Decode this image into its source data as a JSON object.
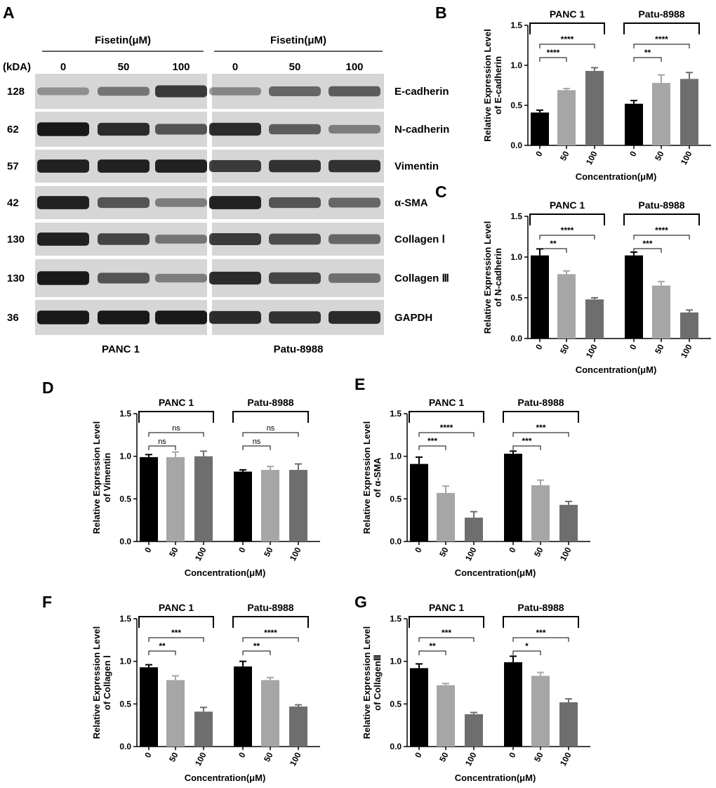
{
  "western_blot": {
    "panel_letter": "A",
    "treatment_labels": [
      "Fisetin(μM)",
      "Fisetin(μM)"
    ],
    "kda_label": "(kDA)",
    "concentrations": [
      "0",
      "50",
      "100",
      "0",
      "50",
      "100"
    ],
    "cell_lines": [
      "PANC 1",
      "Patu-8988"
    ],
    "rows": [
      {
        "protein": "E-cadherin",
        "kda": "128",
        "intensity": [
          0.25,
          0.4,
          0.75,
          0.3,
          0.5,
          0.55
        ]
      },
      {
        "protein": "N-cadherin",
        "kda": "62",
        "intensity": [
          0.95,
          0.85,
          0.6,
          0.85,
          0.55,
          0.35
        ]
      },
      {
        "protein": "Vimentin",
        "kda": "57",
        "intensity": [
          0.9,
          0.9,
          0.9,
          0.75,
          0.8,
          0.8
        ]
      },
      {
        "protein": "α-SMA",
        "kda": "42",
        "intensity": [
          0.9,
          0.6,
          0.35,
          0.9,
          0.6,
          0.5
        ]
      },
      {
        "protein": "Collagen Ⅰ",
        "kda": "130",
        "intensity": [
          0.9,
          0.7,
          0.4,
          0.75,
          0.65,
          0.5
        ]
      },
      {
        "protein": "Collagen Ⅲ",
        "kda": "130",
        "intensity": [
          0.95,
          0.6,
          0.35,
          0.85,
          0.7,
          0.45
        ]
      },
      {
        "protein": "GAPDH",
        "kda": "36",
        "intensity": [
          0.95,
          0.95,
          0.95,
          0.85,
          0.8,
          0.85
        ]
      }
    ]
  },
  "chart_data": [
    {
      "panel": "B",
      "type": "bar",
      "ylabel_line1": "Relative Expression  Level",
      "ylabel_line2": "of E-cadherin",
      "xlabel": "Concentration(μM)",
      "groups": [
        "PANC 1",
        "Patu-8988"
      ],
      "categories": [
        "0",
        "50",
        "100",
        "0",
        "50",
        "100"
      ],
      "values": [
        0.41,
        0.69,
        0.93,
        0.52,
        0.78,
        0.83
      ],
      "errors": [
        0.03,
        0.02,
        0.04,
        0.04,
        0.1,
        0.08
      ],
      "ylim": [
        0,
        1.5
      ],
      "yticks": [
        "0.0",
        "0.5",
        "1.0",
        "1.5"
      ],
      "significance": [
        {
          "from": 0,
          "to": 1,
          "label": "****"
        },
        {
          "from": 0,
          "to": 2,
          "label": "****"
        },
        {
          "from": 3,
          "to": 4,
          "label": "**"
        },
        {
          "from": 3,
          "to": 5,
          "label": "****"
        }
      ]
    },
    {
      "panel": "C",
      "type": "bar",
      "ylabel_line1": "Relative Expression  Level",
      "ylabel_line2": "of N-cadherin",
      "xlabel": "Concentration(μM)",
      "groups": [
        "PANC 1",
        "Patu-8988"
      ],
      "categories": [
        "0",
        "50",
        "100",
        "0",
        "50",
        "100"
      ],
      "values": [
        1.02,
        0.79,
        0.48,
        1.02,
        0.65,
        0.32
      ],
      "errors": [
        0.08,
        0.04,
        0.02,
        0.04,
        0.05,
        0.03
      ],
      "ylim": [
        0,
        1.5
      ],
      "yticks": [
        "0.0",
        "0.5",
        "1.0",
        "1.5"
      ],
      "significance": [
        {
          "from": 0,
          "to": 1,
          "label": "**"
        },
        {
          "from": 0,
          "to": 2,
          "label": "****"
        },
        {
          "from": 3,
          "to": 4,
          "label": "***"
        },
        {
          "from": 3,
          "to": 5,
          "label": "****"
        }
      ]
    },
    {
      "panel": "D",
      "type": "bar",
      "ylabel_line1": "Relative Expression  Level",
      "ylabel_line2": "of Vimentin",
      "xlabel": "Concentration(μM)",
      "groups": [
        "PANC 1",
        "Patu-8988"
      ],
      "categories": [
        "0",
        "50",
        "100",
        "0",
        "50",
        "100"
      ],
      "values": [
        0.99,
        0.99,
        1.0,
        0.82,
        0.84,
        0.84
      ],
      "errors": [
        0.03,
        0.06,
        0.06,
        0.02,
        0.04,
        0.07
      ],
      "ylim": [
        0,
        1.5
      ],
      "yticks": [
        "0.0",
        "0.5",
        "1.0",
        "1.5"
      ],
      "significance": [
        {
          "from": 0,
          "to": 1,
          "label": "ns"
        },
        {
          "from": 0,
          "to": 2,
          "label": "ns"
        },
        {
          "from": 3,
          "to": 4,
          "label": "ns"
        },
        {
          "from": 3,
          "to": 5,
          "label": "ns"
        }
      ]
    },
    {
      "panel": "E",
      "type": "bar",
      "ylabel_line1": "Relative Expression  Level",
      "ylabel_line2": "of α-SMA",
      "xlabel": "Concentration(μM)",
      "groups": [
        "PANC 1",
        "Patu-8988"
      ],
      "categories": [
        "0",
        "50",
        "100",
        "0",
        "50",
        "100"
      ],
      "values": [
        0.91,
        0.57,
        0.28,
        1.03,
        0.66,
        0.43
      ],
      "errors": [
        0.08,
        0.08,
        0.07,
        0.03,
        0.06,
        0.04
      ],
      "ylim": [
        0,
        1.5
      ],
      "yticks": [
        "0.0",
        "0.5",
        "1.0",
        "1.5"
      ],
      "significance": [
        {
          "from": 0,
          "to": 1,
          "label": "***"
        },
        {
          "from": 0,
          "to": 2,
          "label": "****"
        },
        {
          "from": 3,
          "to": 4,
          "label": "***"
        },
        {
          "from": 3,
          "to": 5,
          "label": "***"
        }
      ]
    },
    {
      "panel": "F",
      "type": "bar",
      "ylabel_line1": "Relative Expression  Level",
      "ylabel_line2": "of Collagen Ⅰ",
      "xlabel": "Concentration(μM)",
      "groups": [
        "PANC 1",
        "Patu-8988"
      ],
      "categories": [
        "0",
        "50",
        "100",
        "0",
        "50",
        "100"
      ],
      "values": [
        0.93,
        0.78,
        0.41,
        0.94,
        0.78,
        0.47
      ],
      "errors": [
        0.03,
        0.05,
        0.05,
        0.06,
        0.03,
        0.02
      ],
      "ylim": [
        0,
        1.5
      ],
      "yticks": [
        "0.0",
        "0.5",
        "1.0",
        "1.5"
      ],
      "significance": [
        {
          "from": 0,
          "to": 1,
          "label": "**"
        },
        {
          "from": 0,
          "to": 2,
          "label": "***"
        },
        {
          "from": 3,
          "to": 4,
          "label": "**"
        },
        {
          "from": 3,
          "to": 5,
          "label": "****"
        }
      ]
    },
    {
      "panel": "G",
      "type": "bar",
      "ylabel_line1": "Relative Expression  Level",
      "ylabel_line2": "of CollagenⅢ",
      "xlabel": "Concentration(μM)",
      "groups": [
        "PANC 1",
        "Patu-8988"
      ],
      "categories": [
        "0",
        "50",
        "100",
        "0",
        "50",
        "100"
      ],
      "values": [
        0.92,
        0.72,
        0.38,
        0.99,
        0.83,
        0.52
      ],
      "errors": [
        0.05,
        0.02,
        0.02,
        0.07,
        0.04,
        0.04
      ],
      "ylim": [
        0,
        1.5
      ],
      "yticks": [
        "0.0",
        "0.5",
        "1.0",
        "1.5"
      ],
      "significance": [
        {
          "from": 0,
          "to": 1,
          "label": "**"
        },
        {
          "from": 0,
          "to": 2,
          "label": "***"
        },
        {
          "from": 3,
          "to": 4,
          "label": "*"
        },
        {
          "from": 3,
          "to": 5,
          "label": "***"
        }
      ]
    }
  ],
  "colors": {
    "bar_shades": [
      "#000000",
      "#a6a6a6",
      "#6e6e6e",
      "#000000",
      "#a6a6a6",
      "#6e6e6e"
    ],
    "blot_background": "#d6d6d6",
    "band": "#111111"
  }
}
